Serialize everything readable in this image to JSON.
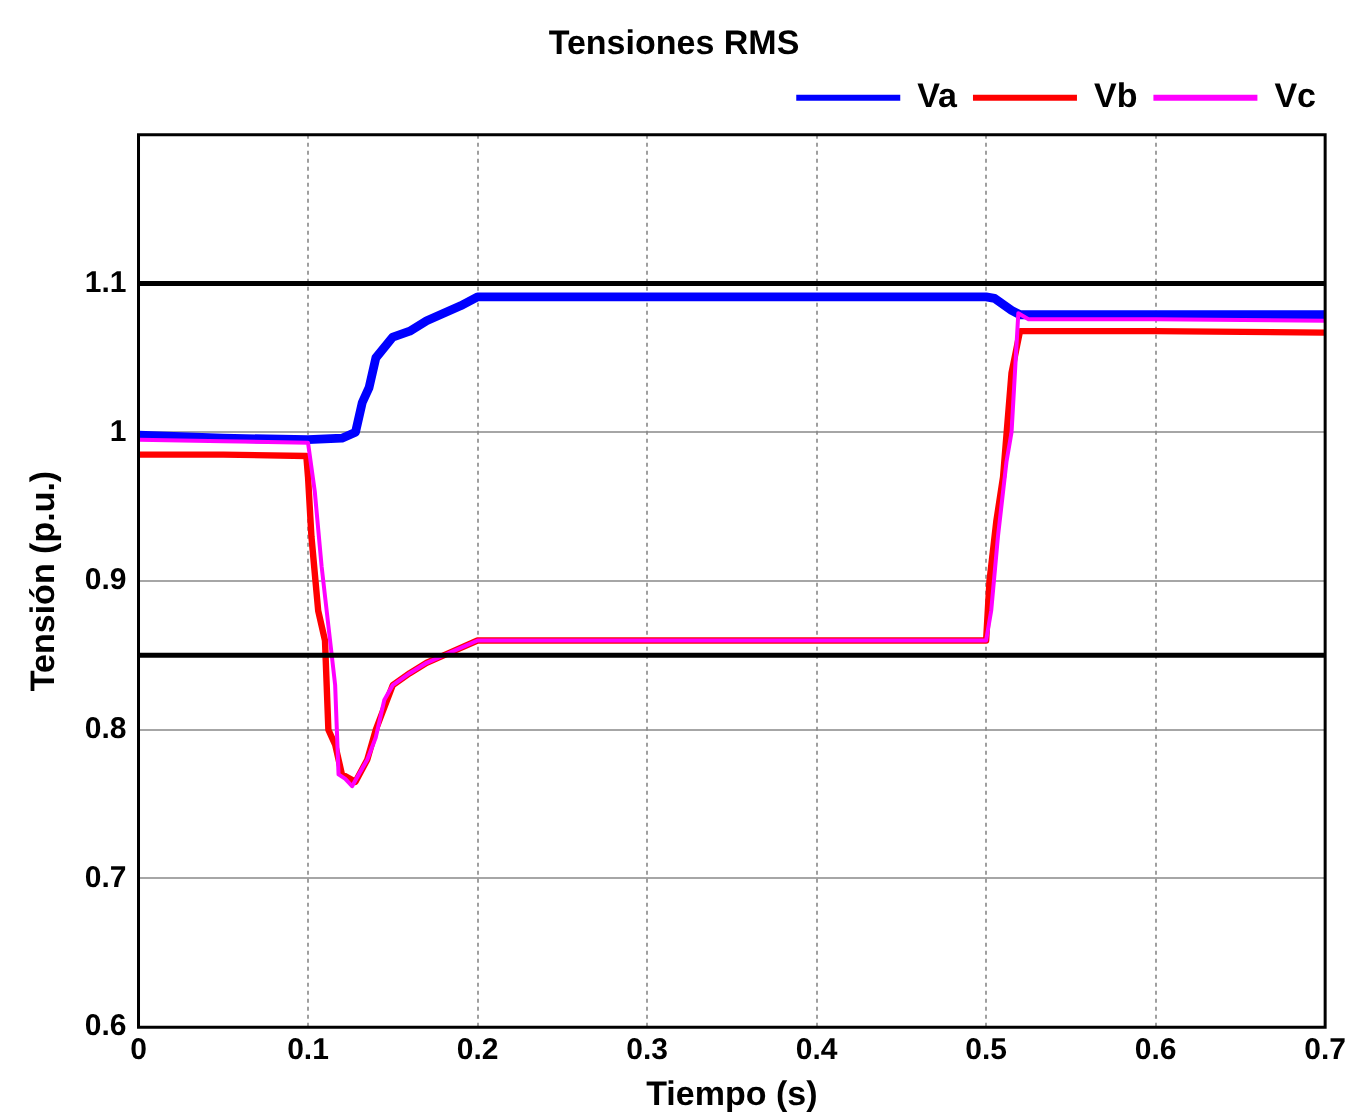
{
  "chart_data": {
    "type": "line",
    "title": "Tensiones RMS",
    "xlabel": "Tiempo (s)",
    "ylabel": "Tensión (p.u.)",
    "xlim": [
      0,
      0.7
    ],
    "xticks": [
      0,
      0.1,
      0.2,
      0.3,
      0.4,
      0.5,
      0.6,
      0.7
    ],
    "ylim": [
      0.6,
      1.2
    ],
    "yticks": [
      0.6,
      0.7,
      0.8,
      0.9,
      1,
      1.1
    ],
    "grid": true,
    "legend": "top right",
    "marker": "none",
    "line_style": "solid",
    "ref_lines": [
      {
        "axis": "y",
        "value": 1.1,
        "color": "#000000"
      },
      {
        "axis": "y",
        "value": 0.85,
        "color": "#000000"
      }
    ],
    "series": [
      {
        "name": "Va",
        "color": "#0000ff",
        "x": [
          0,
          0.05,
          0.1,
          0.12,
          0.128,
          0.132,
          0.136,
          0.14,
          0.15,
          0.16,
          0.17,
          0.18,
          0.19,
          0.2,
          0.3,
          0.4,
          0.5,
          0.505,
          0.515,
          0.52,
          0.6,
          0.7
        ],
        "values": [
          0.998,
          0.996,
          0.995,
          0.996,
          1.0,
          1.02,
          1.03,
          1.05,
          1.064,
          1.068,
          1.075,
          1.08,
          1.085,
          1.091,
          1.091,
          1.091,
          1.091,
          1.09,
          1.082,
          1.079,
          1.079,
          1.079
        ]
      },
      {
        "name": "Vb",
        "color": "#ff0000",
        "x": [
          0,
          0.05,
          0.099,
          0.1,
          0.102,
          0.106,
          0.11,
          0.112,
          0.116,
          0.12,
          0.128,
          0.135,
          0.14,
          0.15,
          0.16,
          0.17,
          0.18,
          0.2,
          0.3,
          0.4,
          0.5,
          0.502,
          0.506,
          0.51,
          0.515,
          0.52,
          0.6,
          0.7
        ],
        "values": [
          0.985,
          0.985,
          0.984,
          0.97,
          0.93,
          0.88,
          0.86,
          0.8,
          0.79,
          0.77,
          0.765,
          0.78,
          0.8,
          0.83,
          0.838,
          0.845,
          0.85,
          0.86,
          0.86,
          0.86,
          0.86,
          0.9,
          0.94,
          0.97,
          1.04,
          1.068,
          1.068,
          1.067
        ]
      },
      {
        "name": "Vc",
        "color": "#ff00ff",
        "x": [
          0,
          0.05,
          0.1,
          0.104,
          0.108,
          0.112,
          0.116,
          0.118,
          0.122,
          0.126,
          0.13,
          0.135,
          0.14,
          0.145,
          0.15,
          0.16,
          0.17,
          0.18,
          0.2,
          0.3,
          0.4,
          0.5,
          0.503,
          0.507,
          0.512,
          0.515,
          0.519,
          0.525,
          0.6,
          0.7
        ],
        "values": [
          0.995,
          0.994,
          0.993,
          0.96,
          0.91,
          0.87,
          0.83,
          0.77,
          0.767,
          0.762,
          0.77,
          0.78,
          0.795,
          0.82,
          0.83,
          0.838,
          0.845,
          0.85,
          0.86,
          0.86,
          0.86,
          0.86,
          0.88,
          0.93,
          0.98,
          1.0,
          1.08,
          1.076,
          1.076,
          1.075
        ]
      }
    ]
  }
}
